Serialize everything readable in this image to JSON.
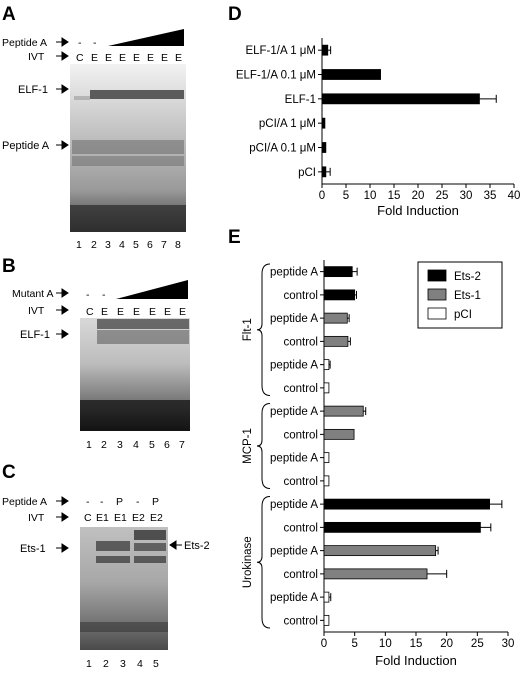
{
  "panels": {
    "A": {
      "label": "A",
      "row_peptide": "Peptide A",
      "row_ivt": "IVT",
      "peptide_marks": [
        "-",
        "-"
      ],
      "ivt_marks": [
        "C",
        "E",
        "E",
        "E",
        "E",
        "E",
        "E",
        "E"
      ],
      "band_labels": [
        "ELF-1",
        "Peptide A"
      ],
      "lanes": [
        "1",
        "2",
        "3",
        "4",
        "5",
        "6",
        "7",
        "8"
      ]
    },
    "B": {
      "label": "B",
      "row_mutant": "Mutant A",
      "row_ivt": "IVT",
      "mutant_marks": [
        "-",
        "-"
      ],
      "ivt_marks": [
        "C",
        "E",
        "E",
        "E",
        "E",
        "E",
        "E"
      ],
      "band_labels": [
        "ELF-1"
      ],
      "lanes": [
        "1",
        "2",
        "3",
        "4",
        "5",
        "6",
        "7"
      ]
    },
    "C": {
      "label": "C",
      "row_peptide": "Peptide A",
      "row_ivt": "IVT",
      "peptide_marks": [
        "-",
        "-",
        "P",
        "-",
        "P"
      ],
      "ivt_marks": [
        "C",
        "E1",
        "E1",
        "E2",
        "E2"
      ],
      "band_left": "Ets-1",
      "band_right": "Ets-2",
      "lanes": [
        "1",
        "2",
        "3",
        "4",
        "5"
      ]
    },
    "D": {
      "label": "D",
      "xlabel": "Fold Induction"
    },
    "E": {
      "label": "E",
      "xlabel": "Fold Induction",
      "groups": [
        "Flt-1",
        "MCP-1",
        "Urokinase"
      ]
    }
  },
  "chart_data": [
    {
      "panel": "D",
      "type": "bar",
      "orientation": "horizontal",
      "categories": [
        "ELF-1/A 1 μM",
        "ELF-1/A 0.1 μM",
        "ELF-1",
        "pCI/A 1 μM",
        "pCI/A 0.1 μM",
        "pCI"
      ],
      "values": [
        1.2,
        12.2,
        32.8,
        0.6,
        0.8,
        0.8
      ],
      "errors": [
        0.6,
        0,
        3.5,
        0,
        0,
        0.9
      ],
      "xlabel": "Fold Induction",
      "xlim": [
        0,
        40
      ],
      "xticks": [
        "0",
        "5",
        "10",
        "15",
        "20",
        "25",
        "30",
        "35",
        "40"
      ],
      "color": "#000000"
    },
    {
      "panel": "E",
      "type": "bar",
      "orientation": "horizontal",
      "xlabel": "Fold Induction",
      "xlim": [
        0,
        30
      ],
      "xticks": [
        "0",
        "5",
        "10",
        "15",
        "20",
        "25",
        "30"
      ],
      "legend": [
        {
          "name": "Ets-2",
          "color": "#000000"
        },
        {
          "name": "Ets-1",
          "color": "#808080"
        },
        {
          "name": "pCI",
          "color": "#ffffff"
        }
      ],
      "legend_position": "top-right",
      "bars": [
        {
          "group": "Flt-1",
          "label": "peptide A",
          "series": "Ets-2",
          "value": 4.6,
          "error": 0.8
        },
        {
          "group": "Flt-1",
          "label": "control",
          "series": "Ets-2",
          "value": 5.0,
          "error": 0.3
        },
        {
          "group": "Flt-1",
          "label": "peptide A",
          "series": "Ets-1",
          "value": 3.8,
          "error": 0.3
        },
        {
          "group": "Flt-1",
          "label": "control",
          "series": "Ets-1",
          "value": 3.9,
          "error": 0.4
        },
        {
          "group": "Flt-1",
          "label": "peptide A",
          "series": "pCI",
          "value": 0.8,
          "error": 0.2
        },
        {
          "group": "Flt-1",
          "label": "control",
          "series": "pCI",
          "value": 0.8,
          "error": 0
        },
        {
          "group": "MCP-1",
          "label": "peptide A",
          "series": "Ets-1",
          "value": 6.4,
          "error": 0.4
        },
        {
          "group": "MCP-1",
          "label": "control",
          "series": "Ets-1",
          "value": 4.9,
          "error": 0
        },
        {
          "group": "MCP-1",
          "label": "peptide A",
          "series": "pCI",
          "value": 0.8,
          "error": 0
        },
        {
          "group": "MCP-1",
          "label": "control",
          "series": "pCI",
          "value": 0.8,
          "error": 0
        },
        {
          "group": "Urokinase",
          "label": "peptide A",
          "series": "Ets-2",
          "value": 27.0,
          "error": 2.0
        },
        {
          "group": "Urokinase",
          "label": "control",
          "series": "Ets-2",
          "value": 25.5,
          "error": 1.7
        },
        {
          "group": "Urokinase",
          "label": "peptide A",
          "series": "Ets-1",
          "value": 18.2,
          "error": 0.4
        },
        {
          "group": "Urokinase",
          "label": "control",
          "series": "Ets-1",
          "value": 16.8,
          "error": 3.2
        },
        {
          "group": "Urokinase",
          "label": "peptide A",
          "series": "pCI",
          "value": 0.8,
          "error": 0.3
        },
        {
          "group": "Urokinase",
          "label": "control",
          "series": "pCI",
          "value": 0.8,
          "error": 0
        }
      ]
    }
  ]
}
